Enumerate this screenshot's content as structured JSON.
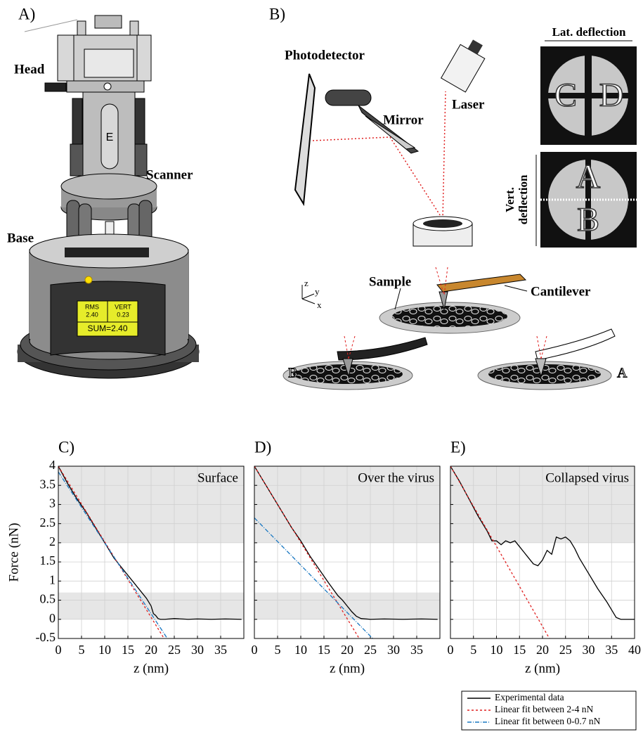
{
  "panel_labels": [
    "A)",
    "B)"
  ],
  "instrument": {
    "head": "Head",
    "scanner": "Scanner",
    "base": "Base",
    "scanner_letter": "E",
    "display": {
      "rms": "RMS",
      "rms_value": "2.40",
      "vert": "VERT",
      "vert_value": "0.23",
      "sum": "SUM=2.40"
    }
  },
  "optics": {
    "photodetector": "Photodetector",
    "mirror": "Mirror",
    "laser": "Laser",
    "lat_deflection": "Lat. deflection",
    "vert_deflection": [
      "Vert.",
      "deflection"
    ],
    "quadrants": [
      "C",
      "D",
      "A",
      "B"
    ],
    "sample": "Sample",
    "cantilever": "Cantilever",
    "axes": [
      "z",
      "y",
      "x"
    ],
    "states": [
      "B",
      "A"
    ]
  },
  "chart_data": [
    {
      "type": "line",
      "panel": "C)",
      "annotation": "Surface",
      "xlabel": "z (nm)",
      "ylabel": "Force (nN)",
      "show_ytick_labels": true,
      "xlim": [
        0,
        40
      ],
      "ylim": [
        -0.5,
        4
      ],
      "xticks": [
        0,
        5,
        10,
        15,
        20,
        25,
        30,
        35
      ],
      "yticks": [
        -0.5,
        0,
        0.5,
        1,
        1.5,
        2,
        2.5,
        3,
        3.5,
        4
      ],
      "grid": true,
      "bands": [
        [
          2,
          4
        ],
        [
          0,
          0.7
        ]
      ],
      "series": [
        {
          "color": "#000000",
          "x": [
            0,
            2,
            4,
            6,
            8,
            10,
            12,
            14,
            16,
            18,
            19,
            20,
            20.5,
            21,
            21.5,
            22,
            23,
            25,
            28,
            30,
            33,
            36,
            39.5
          ],
          "values": [
            4,
            3.55,
            3.15,
            2.8,
            2.4,
            2.0,
            1.6,
            1.3,
            1.0,
            0.7,
            0.55,
            0.35,
            0.15,
            0.1,
            0.02,
            0,
            0,
            0.02,
            0,
            0.01,
            0,
            0.01,
            0
          ]
        },
        {
          "color": "#e02020",
          "dash": "3,3",
          "x": [
            0,
            22.8
          ],
          "values": [
            4,
            -0.5
          ]
        },
        {
          "color": "#1a78c2",
          "dash": "6,2,1,2",
          "x": [
            0,
            23.5
          ],
          "values": [
            3.85,
            -0.5
          ]
        }
      ]
    },
    {
      "type": "line",
      "panel": "D)",
      "annotation": "Over the virus",
      "xlabel": "z (nm)",
      "show_ytick_labels": false,
      "xlim": [
        0,
        40
      ],
      "ylim": [
        -0.5,
        4
      ],
      "xticks": [
        0,
        5,
        10,
        15,
        20,
        25,
        30,
        35
      ],
      "yticks": [
        -0.5,
        0,
        0.5,
        1,
        1.5,
        2,
        2.5,
        3,
        3.5,
        4
      ],
      "grid": true,
      "bands": [
        [
          2,
          4
        ],
        [
          0,
          0.7
        ]
      ],
      "series": [
        {
          "color": "#000000",
          "x": [
            0,
            2,
            4,
            6,
            8,
            10,
            12,
            14,
            16,
            18,
            19,
            20,
            21,
            22,
            23,
            25,
            28,
            32,
            36,
            39.5
          ],
          "values": [
            4,
            3.6,
            3.2,
            2.8,
            2.4,
            2.05,
            1.65,
            1.3,
            0.95,
            0.62,
            0.5,
            0.35,
            0.2,
            0.08,
            0.02,
            0,
            0.01,
            0,
            0.01,
            0
          ]
        },
        {
          "color": "#e02020",
          "dash": "3,3",
          "x": [
            0,
            22.6
          ],
          "values": [
            4,
            -0.5
          ]
        },
        {
          "color": "#1a78c2",
          "dash": "6,2,1,2",
          "x": [
            0,
            25.5
          ],
          "values": [
            2.65,
            -0.5
          ]
        }
      ]
    },
    {
      "type": "line",
      "panel": "E)",
      "annotation": "Collapsed virus",
      "xlabel": "z (nm)",
      "show_ytick_labels": false,
      "xlim": [
        0,
        40
      ],
      "ylim": [
        -0.5,
        4
      ],
      "xticks": [
        0,
        5,
        10,
        15,
        20,
        25,
        30,
        35,
        40
      ],
      "yticks": [
        -0.5,
        0,
        0.5,
        1,
        1.5,
        2,
        2.5,
        3,
        3.5,
        4
      ],
      "grid": true,
      "bands": [
        [
          2,
          4
        ]
      ],
      "series": [
        {
          "color": "#000000",
          "x": [
            0,
            2,
            4,
            6,
            8,
            9,
            10,
            11,
            12,
            13,
            14,
            15,
            16,
            17,
            18,
            19,
            20,
            21,
            22,
            23,
            24,
            25,
            26,
            27,
            28,
            30,
            32,
            34,
            35,
            36,
            37,
            38,
            40
          ],
          "values": [
            4,
            3.6,
            3.15,
            2.7,
            2.3,
            2.05,
            2.05,
            1.95,
            2.05,
            2.0,
            2.05,
            1.9,
            1.75,
            1.6,
            1.45,
            1.4,
            1.55,
            1.8,
            1.7,
            2.15,
            2.1,
            2.15,
            2.05,
            1.85,
            1.6,
            1.2,
            0.8,
            0.45,
            0.25,
            0.05,
            0,
            0,
            0
          ]
        },
        {
          "color": "#e02020",
          "dash": "3,3",
          "x": [
            0,
            21.5
          ],
          "values": [
            4,
            -0.5
          ]
        }
      ]
    }
  ],
  "legend": [
    {
      "label": "Experimental data",
      "color": "#000000",
      "dash": "none"
    },
    {
      "label": "Linear fit between 2-4 nN",
      "color": "#e02020",
      "dash": "3,3"
    },
    {
      "label": "Linear fit between 0-0.7 nN",
      "color": "#1a78c2",
      "dash": "6,2,1,2"
    }
  ]
}
